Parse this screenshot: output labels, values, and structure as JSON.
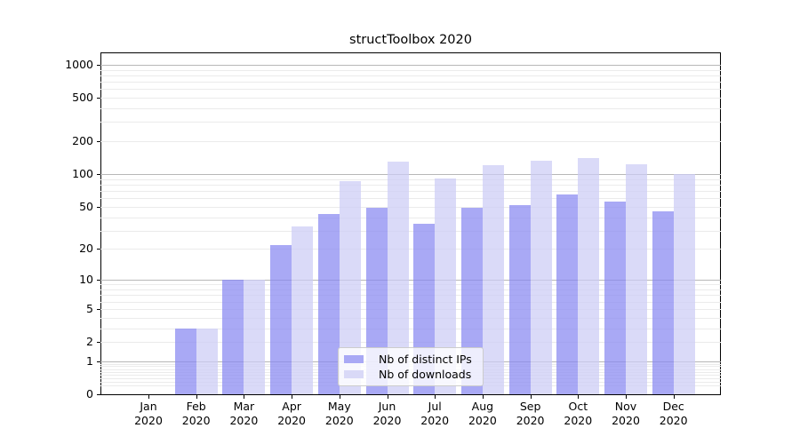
{
  "chart_data": {
    "type": "bar",
    "title": "structToolbox 2020",
    "categories": [
      "Jan",
      "Feb",
      "Mar",
      "Apr",
      "May",
      "Jun",
      "Jul",
      "Aug",
      "Sep",
      "Oct",
      "Nov",
      "Dec"
    ],
    "year_label": "2020",
    "series": [
      {
        "name": "Nb of distinct IPs",
        "values": [
          0,
          3,
          10,
          22,
          43,
          49,
          35,
          49,
          52,
          65,
          56,
          45
        ]
      },
      {
        "name": "Nb of downloads",
        "values": [
          0,
          3,
          10,
          33,
          86,
          131,
          92,
          121,
          134,
          140,
          124,
          100
        ]
      }
    ],
    "yscale": "log1p",
    "ylim": [
      0,
      1320
    ],
    "ytick_values": [
      0,
      1,
      2,
      5,
      10,
      20,
      50,
      100,
      200,
      500,
      1000
    ],
    "ytick_labels": [
      "0",
      "1",
      "2",
      "5",
      "10",
      "20",
      "50",
      "100",
      "200",
      "500",
      "1000"
    ],
    "grid": "major-and-minor",
    "legend_position": "lower-center-inside"
  },
  "legend": {
    "items": [
      {
        "label": "Nb of distinct IPs",
        "swatch": "#a9a9f5"
      },
      {
        "label": "Nb of downloads",
        "swatch": "#d9d9f7"
      }
    ]
  },
  "colors": {
    "ips_bar": "rgba(136,136,241,0.72)",
    "downloads_bar": "rgba(204,204,245,0.72)",
    "grid_major": "#b7b7b7",
    "grid_minor": "#ebebeb",
    "axis": "#000000"
  }
}
